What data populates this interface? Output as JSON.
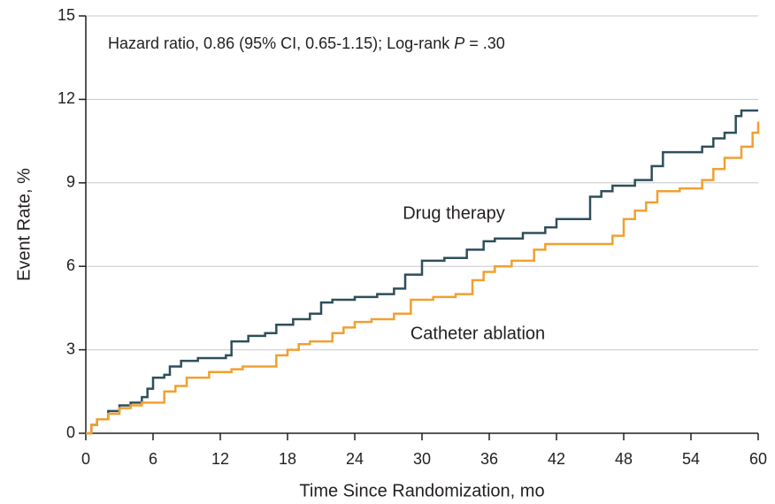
{
  "chart_data": {
    "type": "step",
    "annotation": [
      "Hazard ratio, 0.86 (95% CI, 0.65-1.15); Log-rank ",
      "P",
      " = .30"
    ],
    "x_label": "Time Since Randomization, mo",
    "y_label": "Event Rate, %",
    "xlim": [
      0,
      60
    ],
    "xticks": [
      0,
      6,
      12,
      18,
      24,
      30,
      36,
      42,
      48,
      54,
      60
    ],
    "ylim": [
      0,
      15
    ],
    "yticks": [
      0,
      3,
      6,
      9,
      12,
      15
    ],
    "grid": true,
    "series": [
      {
        "name": "Drug therapy",
        "color": "#2e4f5a",
        "x": [
          0,
          0.5,
          1,
          2,
          3,
          4,
          5,
          5.5,
          6,
          7,
          7.5,
          8.5,
          10,
          12.5,
          13,
          14.5,
          16,
          17,
          18.5,
          20,
          21,
          22,
          24,
          26,
          27.5,
          28.5,
          30,
          32,
          34,
          35.5,
          36.5,
          39,
          41,
          42,
          45,
          46,
          47,
          49,
          50.5,
          51.5,
          55,
          56,
          57,
          58,
          58.5,
          60
        ],
        "values": [
          0,
          0.3,
          0.5,
          0.8,
          1.0,
          1.1,
          1.3,
          1.6,
          2.0,
          2.1,
          2.4,
          2.6,
          2.7,
          2.8,
          3.3,
          3.5,
          3.6,
          3.9,
          4.1,
          4.3,
          4.7,
          4.8,
          4.9,
          5.0,
          5.2,
          5.7,
          6.2,
          6.3,
          6.6,
          6.9,
          7.0,
          7.2,
          7.4,
          7.7,
          8.5,
          8.7,
          8.9,
          9.1,
          9.6,
          10.1,
          10.3,
          10.6,
          10.8,
          11.4,
          11.6,
          11.6
        ]
      },
      {
        "name": "Catheter ablation",
        "color": "#f0a030",
        "x": [
          0,
          0.5,
          1,
          2,
          3,
          4,
          5,
          7,
          8,
          9,
          11,
          13,
          14,
          17,
          18,
          19,
          20,
          22,
          23,
          24,
          25.5,
          27.5,
          29,
          31,
          33,
          34.5,
          35.5,
          36.5,
          38,
          40,
          41,
          47,
          48,
          49,
          50,
          51,
          53,
          55,
          56,
          57,
          58.5,
          59.5,
          60
        ],
        "values": [
          0,
          0.3,
          0.5,
          0.7,
          0.9,
          1.0,
          1.1,
          1.5,
          1.7,
          2.0,
          2.2,
          2.3,
          2.4,
          2.8,
          3.0,
          3.2,
          3.3,
          3.6,
          3.8,
          4.0,
          4.1,
          4.3,
          4.8,
          4.9,
          5.0,
          5.5,
          5.8,
          6.0,
          6.2,
          6.6,
          6.8,
          7.1,
          7.7,
          8.0,
          8.3,
          8.7,
          8.8,
          9.1,
          9.5,
          9.9,
          10.3,
          10.8,
          11.2
        ]
      }
    ]
  }
}
